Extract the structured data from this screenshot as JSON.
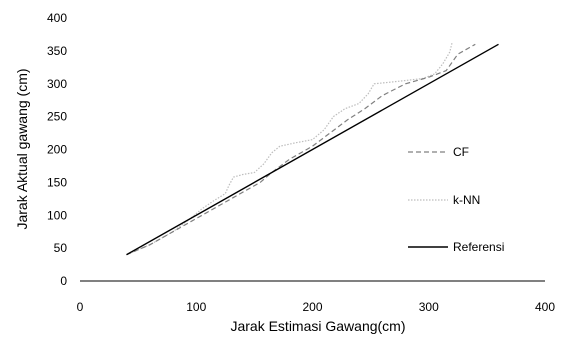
{
  "chart_data": {
    "type": "line",
    "xlabel": "Jarak Estimasi Gawang(cm)",
    "ylabel": "Jarak Aktual gawang (cm)",
    "xlim": [
      0,
      400
    ],
    "ylim": [
      0,
      400
    ],
    "x_ticks": [
      "0",
      "100",
      "200",
      "300",
      "400"
    ],
    "y_ticks": [
      "0",
      "50",
      "100",
      "150",
      "200",
      "250",
      "300",
      "350",
      "400"
    ],
    "grid": false,
    "legend_position": "right",
    "series": [
      {
        "name": "CF",
        "style": "dashed",
        "color": "#808080",
        "points": [
          [
            40,
            40
          ],
          [
            60,
            55
          ],
          [
            80,
            75
          ],
          [
            100,
            95
          ],
          [
            120,
            115
          ],
          [
            140,
            135
          ],
          [
            155,
            150
          ],
          [
            165,
            165
          ],
          [
            180,
            185
          ],
          [
            200,
            205
          ],
          [
            215,
            225
          ],
          [
            230,
            245
          ],
          [
            245,
            262
          ],
          [
            260,
            282
          ],
          [
            280,
            300
          ],
          [
            300,
            310
          ],
          [
            315,
            320
          ],
          [
            325,
            345
          ],
          [
            340,
            360
          ]
        ]
      },
      {
        "name": "k-NN",
        "style": "dotted",
        "color": "#bdbdbd",
        "points": [
          [
            40,
            40
          ],
          [
            60,
            55
          ],
          [
            80,
            75
          ],
          [
            95,
            95
          ],
          [
            105,
            110
          ],
          [
            115,
            122
          ],
          [
            125,
            133
          ],
          [
            128,
            145
          ],
          [
            132,
            158
          ],
          [
            140,
            162
          ],
          [
            150,
            165
          ],
          [
            158,
            178
          ],
          [
            165,
            195
          ],
          [
            172,
            205
          ],
          [
            185,
            210
          ],
          [
            200,
            215
          ],
          [
            210,
            230
          ],
          [
            218,
            250
          ],
          [
            228,
            262
          ],
          [
            240,
            270
          ],
          [
            248,
            285
          ],
          [
            253,
            300
          ],
          [
            265,
            302
          ],
          [
            280,
            305
          ],
          [
            295,
            308
          ],
          [
            305,
            315
          ],
          [
            312,
            330
          ],
          [
            318,
            348
          ],
          [
            320,
            362
          ]
        ]
      },
      {
        "name": "Referensi",
        "style": "solid",
        "color": "#000000",
        "points": [
          [
            40,
            40
          ],
          [
            360,
            360
          ]
        ]
      }
    ]
  }
}
